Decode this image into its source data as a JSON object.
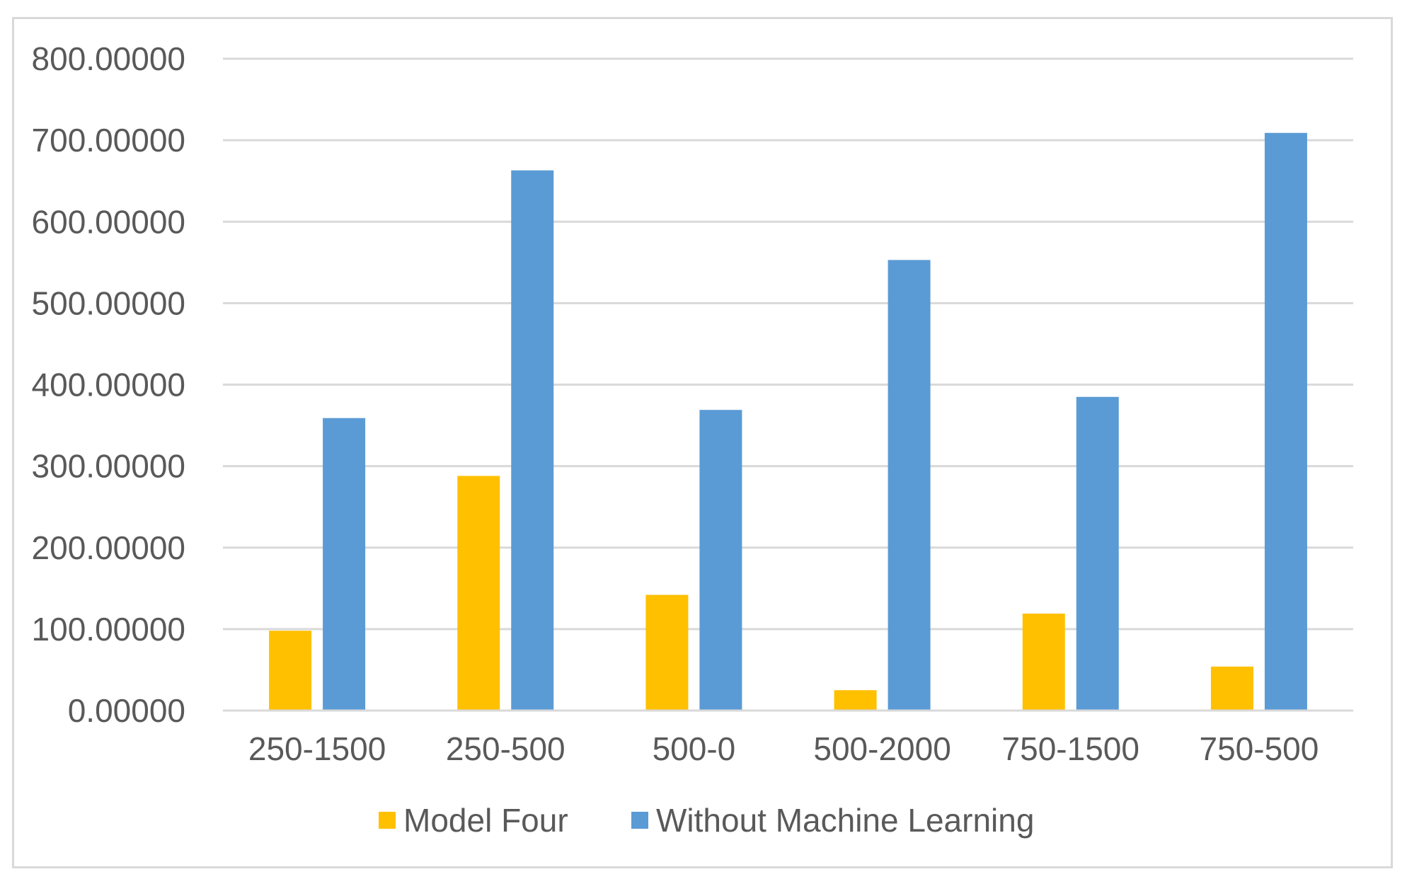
{
  "chart_data": {
    "type": "bar",
    "categories": [
      "250-1500",
      "250-500",
      "500-0",
      "500-2000",
      "750-1500",
      "750-500"
    ],
    "series": [
      {
        "name": "Model Four",
        "color": "#FFC000",
        "values": [
          98,
          288,
          142,
          25,
          119,
          54
        ]
      },
      {
        "name": "Without Machine Learning",
        "color": "#5B9BD5",
        "values": [
          359,
          663,
          369,
          553,
          385,
          709
        ]
      }
    ],
    "yticks": [
      "0.00000",
      "100.00000",
      "200.00000",
      "300.00000",
      "400.00000",
      "500.00000",
      "600.00000",
      "700.00000",
      "800.00000"
    ],
    "ylim": [
      0,
      800
    ],
    "grid": true,
    "legend_position": "bottom",
    "title": "",
    "xlabel": "",
    "ylabel": ""
  }
}
